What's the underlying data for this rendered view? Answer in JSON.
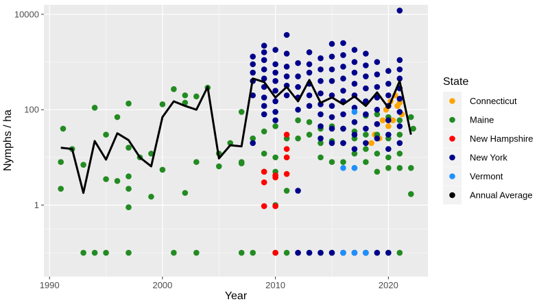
{
  "chart_data": {
    "type": "scatter",
    "title": "",
    "xlabel": "Year",
    "ylabel": "Nymphs / ha",
    "xlim": [
      1989.5,
      2023.5
    ],
    "ylim_log10": [
      -1.5,
      4.2
    ],
    "yscale": "log10",
    "x_ticks": [
      1990,
      2000,
      2010,
      2020
    ],
    "x_tick_labels": [
      "1990",
      "2000",
      "2010",
      "2020"
    ],
    "y_ticks": [
      1,
      100,
      10000
    ],
    "y_tick_labels": [
      "1",
      "100",
      "10000"
    ],
    "grid": true,
    "legend_title": "State",
    "legend_position": "right",
    "series": [
      {
        "name": "Connecticut",
        "color": "#FFA500",
        "points": [
          [
            2018.5,
            20
          ],
          [
            2018.8,
            30
          ],
          [
            2019,
            50
          ],
          [
            2019.2,
            25
          ],
          [
            2019.5,
            60
          ],
          [
            2019.8,
            100
          ],
          [
            2020,
            45
          ],
          [
            2020.2,
            150
          ],
          [
            2020.4,
            60
          ],
          [
            2020.6,
            200
          ],
          [
            2020.8,
            120
          ],
          [
            2021,
            140
          ],
          [
            2021.2,
            80
          ]
        ]
      },
      {
        "name": "Maine",
        "color": "#228B22",
        "points": [
          [
            1991,
            8
          ],
          [
            1991,
            2.2
          ],
          [
            1991.2,
            40
          ],
          [
            1992,
            15
          ],
          [
            1993,
            7
          ],
          [
            1993,
            0.1
          ],
          [
            1994,
            110
          ],
          [
            1994,
            0.1
          ],
          [
            1995,
            3.5
          ],
          [
            1995,
            30
          ],
          [
            1995,
            0.1
          ],
          [
            1996,
            70
          ],
          [
            1996,
            3.2
          ],
          [
            1997,
            135
          ],
          [
            1997,
            16
          ],
          [
            1997,
            4
          ],
          [
            1997,
            2.2
          ],
          [
            1997,
            0.9
          ],
          [
            1997,
            0.1
          ],
          [
            1998,
            10
          ],
          [
            1999,
            12
          ],
          [
            1999,
            1.5
          ],
          [
            2000,
            130
          ],
          [
            2000,
            5.5
          ],
          [
            2001,
            270
          ],
          [
            2001,
            0.1
          ],
          [
            2002,
            200
          ],
          [
            2002,
            1.8
          ],
          [
            2002,
            140
          ],
          [
            2003,
            190
          ],
          [
            2003,
            8
          ],
          [
            2003,
            0.1
          ],
          [
            2004,
            290
          ],
          [
            2005,
            12
          ],
          [
            2005,
            6.5
          ],
          [
            2006,
            20
          ],
          [
            2007,
            90
          ],
          [
            2007,
            8
          ],
          [
            2007,
            7.5
          ],
          [
            2007,
            0.1
          ],
          [
            2008,
            25
          ],
          [
            2008,
            0.1
          ],
          [
            2009,
            35
          ],
          [
            2009,
            12
          ],
          [
            2009,
            5
          ],
          [
            2010,
            45
          ],
          [
            2010,
            10
          ],
          [
            2010,
            5
          ],
          [
            2010,
            1
          ],
          [
            2010,
            0.1
          ],
          [
            2011,
            25
          ],
          [
            2011,
            10
          ],
          [
            2011,
            2
          ],
          [
            2011,
            0.1
          ],
          [
            2012,
            60
          ],
          [
            2012,
            25
          ],
          [
            2012,
            0.1
          ],
          [
            2013,
            55
          ],
          [
            2013,
            30
          ],
          [
            2013,
            0.1
          ],
          [
            2014,
            40
          ],
          [
            2014,
            20
          ],
          [
            2014,
            10
          ],
          [
            2014,
            0.1
          ],
          [
            2015,
            45
          ],
          [
            2015,
            22
          ],
          [
            2015,
            8
          ],
          [
            2015,
            0.1
          ],
          [
            2016,
            40
          ],
          [
            2016,
            20
          ],
          [
            2016,
            8
          ],
          [
            2016,
            0.1
          ],
          [
            2017,
            35
          ],
          [
            2017,
            25
          ],
          [
            2017,
            12
          ],
          [
            2017,
            6
          ],
          [
            2017,
            0.1
          ],
          [
            2018,
            75
          ],
          [
            2018,
            30
          ],
          [
            2018,
            15
          ],
          [
            2018,
            8
          ],
          [
            2018,
            0.1
          ],
          [
            2019,
            80
          ],
          [
            2019,
            30
          ],
          [
            2019,
            12
          ],
          [
            2019,
            5
          ],
          [
            2019,
            0.1
          ],
          [
            2020,
            70
          ],
          [
            2020,
            25
          ],
          [
            2020,
            10
          ],
          [
            2020,
            6
          ],
          [
            2020,
            0.1
          ],
          [
            2021,
            60
          ],
          [
            2021,
            30
          ],
          [
            2021,
            12
          ],
          [
            2021,
            6
          ],
          [
            2021,
            0.1
          ],
          [
            2022,
            70
          ],
          [
            2022,
            6
          ],
          [
            2022,
            1.7
          ],
          [
            2022.2,
            40
          ]
        ]
      },
      {
        "name": "New Hampshire",
        "color": "#FF0000",
        "points": [
          [
            2009,
            3
          ],
          [
            2009,
            5
          ],
          [
            2009,
            0.95
          ],
          [
            2010,
            3.8
          ],
          [
            2010,
            4.2
          ],
          [
            2010,
            0.95
          ],
          [
            2010,
            0.1
          ],
          [
            2011,
            30
          ],
          [
            2011,
            15
          ],
          [
            2011,
            10
          ],
          [
            2011,
            4.5
          ]
        ]
      },
      {
        "name": "New York",
        "color": "#00008B",
        "points": [
          [
            2008,
            1300
          ],
          [
            2008,
            900
          ],
          [
            2008,
            600
          ],
          [
            2008,
            400
          ],
          [
            2008,
            200
          ],
          [
            2008,
            20
          ],
          [
            2009,
            2200
          ],
          [
            2009,
            1600
          ],
          [
            2009,
            1100
          ],
          [
            2009,
            700
          ],
          [
            2009,
            450
          ],
          [
            2009,
            300
          ],
          [
            2009,
            180
          ],
          [
            2009,
            120
          ],
          [
            2009,
            80
          ],
          [
            2010,
            1800
          ],
          [
            2010,
            900
          ],
          [
            2010,
            600
          ],
          [
            2010,
            400
          ],
          [
            2010,
            250
          ],
          [
            2010,
            150
          ],
          [
            2010,
            90
          ],
          [
            2010,
            60
          ],
          [
            2011,
            1500
          ],
          [
            2011,
            800
          ],
          [
            2011,
            500
          ],
          [
            2011,
            320
          ],
          [
            2011,
            200
          ],
          [
            2011,
            3700
          ],
          [
            2012,
            950
          ],
          [
            2012,
            500
          ],
          [
            2012,
            300
          ],
          [
            2012,
            180
          ],
          [
            2012,
            100
          ],
          [
            2012,
            2
          ],
          [
            2012,
            0.1
          ],
          [
            2013,
            1600
          ],
          [
            2013,
            900
          ],
          [
            2013,
            600
          ],
          [
            2013,
            350
          ],
          [
            2013,
            200
          ],
          [
            2013,
            120
          ],
          [
            2013,
            0.1
          ],
          [
            2014,
            1200
          ],
          [
            2014,
            700
          ],
          [
            2014,
            400
          ],
          [
            2014,
            220
          ],
          [
            2014,
            130
          ],
          [
            2014,
            80
          ],
          [
            2014,
            45
          ],
          [
            2014,
            25
          ],
          [
            2014,
            0.1
          ],
          [
            2015,
            2400
          ],
          [
            2015,
            1300
          ],
          [
            2015,
            700
          ],
          [
            2015,
            400
          ],
          [
            2015,
            200
          ],
          [
            2015,
            120
          ],
          [
            2015,
            70
          ],
          [
            2015,
            40
          ],
          [
            2015,
            20
          ],
          [
            2015,
            0.1
          ],
          [
            2016,
            2500
          ],
          [
            2016,
            1400
          ],
          [
            2016,
            800
          ],
          [
            2016,
            450
          ],
          [
            2016,
            250
          ],
          [
            2016,
            150
          ],
          [
            2016,
            80
          ],
          [
            2016,
            40
          ],
          [
            2016,
            20
          ],
          [
            2016,
            0.1
          ],
          [
            2017,
            1800
          ],
          [
            2017,
            1000
          ],
          [
            2017,
            600
          ],
          [
            2017,
            350
          ],
          [
            2017,
            200
          ],
          [
            2017,
            110
          ],
          [
            2017,
            55
          ],
          [
            2017,
            30
          ],
          [
            2017,
            15
          ],
          [
            2017,
            0.1
          ],
          [
            2018,
            1500
          ],
          [
            2018,
            850
          ],
          [
            2018,
            500
          ],
          [
            2018,
            280
          ],
          [
            2018,
            150
          ],
          [
            2018,
            80
          ],
          [
            2018,
            40
          ],
          [
            2018,
            20
          ],
          [
            2018,
            0.1
          ],
          [
            2019,
            1000
          ],
          [
            2019,
            550
          ],
          [
            2019,
            300
          ],
          [
            2019,
            180
          ],
          [
            2019,
            100
          ],
          [
            2019,
            50
          ],
          [
            2019,
            25
          ],
          [
            2019,
            0.1
          ],
          [
            2020,
            650
          ],
          [
            2020,
            350
          ],
          [
            2020,
            200
          ],
          [
            2020,
            120
          ],
          [
            2020,
            60
          ],
          [
            2020,
            30
          ],
          [
            2020,
            15
          ],
          [
            2020,
            0.1
          ],
          [
            2021,
            12000
          ],
          [
            2021,
            1100
          ],
          [
            2021,
            700
          ],
          [
            2021,
            450
          ],
          [
            2021,
            280
          ],
          [
            2021,
            170
          ],
          [
            2021,
            90
          ],
          [
            2021,
            45
          ],
          [
            2021,
            20
          ]
        ]
      },
      {
        "name": "Vermont",
        "color": "#1E90FF",
        "points": [
          [
            2016,
            6
          ],
          [
            2016,
            0.1
          ],
          [
            2017,
            6
          ],
          [
            2017,
            90
          ],
          [
            2017,
            0.1
          ],
          [
            2018,
            0.1
          ]
        ]
      },
      {
        "name": "Annual Average",
        "color": "#000000",
        "points": []
      }
    ],
    "annual_average": {
      "name": "Annual Average",
      "color": "#000000",
      "x": [
        1991,
        1992,
        1993,
        1994,
        1995,
        1996,
        1997,
        1998,
        1999,
        2000,
        2001,
        2002,
        2003,
        2004,
        2005,
        2006,
        2007,
        2008,
        2009,
        2010,
        2011,
        2012,
        2013,
        2014,
        2015,
        2016,
        2017,
        2018,
        2019,
        2020,
        2021,
        2022
      ],
      "y": [
        16,
        15,
        1.8,
        22,
        9,
        32,
        23,
        10,
        6.5,
        70,
        150,
        120,
        100,
        300,
        9.5,
        18,
        17,
        450,
        380,
        180,
        300,
        150,
        420,
        140,
        180,
        130,
        190,
        120,
        230,
        110,
        400,
        30
      ]
    }
  }
}
